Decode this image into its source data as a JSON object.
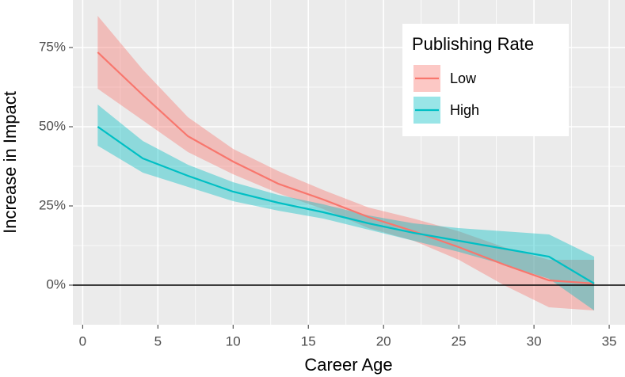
{
  "chart_data": {
    "type": "line",
    "x_label": "Career Age",
    "y_label": "Increase in Impact",
    "x": [
      1,
      4,
      7,
      10,
      13,
      16,
      19,
      22,
      25,
      28,
      31,
      34
    ],
    "series": [
      {
        "name": "Low",
        "color": "#F8766D",
        "values": [
          73.5,
          60,
          47,
          39,
          32,
          27,
          21.5,
          17,
          12,
          6.5,
          1.5,
          0.5
        ],
        "lower": [
          62,
          52,
          42,
          35,
          29,
          24,
          18,
          14,
          8,
          0,
          -7,
          -8
        ],
        "upper": [
          85,
          68,
          53,
          43,
          36,
          30,
          24.5,
          21,
          17,
          12,
          8,
          8
        ]
      },
      {
        "name": "High",
        "color": "#00BFC4",
        "values": [
          50,
          40,
          34.5,
          29.5,
          26,
          23,
          19.5,
          16.5,
          14,
          11.5,
          9,
          0.5
        ],
        "lower": [
          44,
          35.5,
          31,
          26.5,
          23.5,
          21,
          17.5,
          14,
          10.5,
          6.5,
          2,
          -8
        ],
        "upper": [
          57,
          45.5,
          38,
          32.5,
          28.5,
          25.5,
          22,
          19.5,
          18,
          17,
          16,
          9
        ]
      }
    ],
    "legend_title": "Publishing Rate",
    "legend": "top-right",
    "hline": 0,
    "xlim": [
      -0.65,
      36.05
    ],
    "ylim": [
      -12.5,
      90
    ],
    "xticks": [
      0,
      5,
      10,
      15,
      20,
      25,
      30,
      35
    ],
    "yticks": [
      {
        "value": 0,
        "label": "0%"
      },
      {
        "value": 25,
        "label": "25%"
      },
      {
        "value": 50,
        "label": "50%"
      },
      {
        "value": 75,
        "label": "75%"
      }
    ],
    "grid": true
  }
}
